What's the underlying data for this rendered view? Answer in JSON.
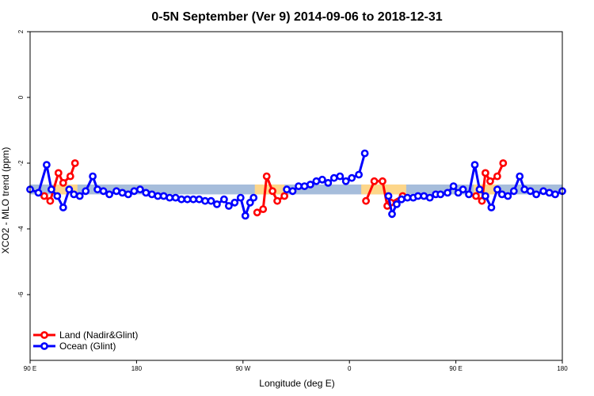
{
  "chart_data": {
    "type": "line",
    "title": "0-5N September (Ver 9)   2014-09-06 to 2018-12-31",
    "xlabel": "Longitude (deg E)",
    "ylabel": "XCO2 - MLO trend (ppm)",
    "xlim": [
      90,
      540
    ],
    "ylim": [
      -8,
      2
    ],
    "x_ticks": [
      {
        "value": 90,
        "label": "90 E"
      },
      {
        "value": 180,
        "label": "180"
      },
      {
        "value": 270,
        "label": "90 W"
      },
      {
        "value": 360,
        "label": "0"
      },
      {
        "value": 450,
        "label": "90 E"
      },
      {
        "value": 540,
        "label": "180"
      }
    ],
    "y_ticks": [
      {
        "value": 2,
        "label": "2"
      },
      {
        "value": 0,
        "label": "0"
      },
      {
        "value": -2,
        "label": "-2"
      },
      {
        "value": -4,
        "label": "-4"
      },
      {
        "value": -6,
        "label": "-6"
      }
    ],
    "grid": false,
    "legend_position": "bottom-left",
    "bands": [
      {
        "name": "ocean-band",
        "color": "#a6bddb",
        "x0": 90,
        "x1": 540,
        "y0": -2.95,
        "y1": -2.65
      },
      {
        "name": "land-band",
        "color": "#fdd68a",
        "x0": 110,
        "x1": 130,
        "y0": -2.95,
        "y1": -2.65
      },
      {
        "name": "land-band",
        "color": "#fdd68a",
        "x0": 280,
        "x1": 305,
        "y0": -2.95,
        "y1": -2.65
      },
      {
        "name": "land-band",
        "color": "#fdd68a",
        "x0": 370,
        "x1": 408,
        "y0": -2.95,
        "y1": -2.65
      },
      {
        "name": "land-band",
        "color": "#fdd68a",
        "x0": 465,
        "x1": 485,
        "y0": -2.95,
        "y1": -2.65
      }
    ],
    "series": [
      {
        "name": "Land (Nadir&Glint)",
        "color": "#ff0000",
        "segments": [
          [
            [
              102,
              -3.0
            ],
            [
              107,
              -3.15
            ],
            [
              114,
              -2.3
            ],
            [
              118,
              -2.6
            ],
            [
              124,
              -2.4
            ],
            [
              128,
              -2.0
            ]
          ],
          [
            [
              282,
              -3.5
            ],
            [
              287,
              -3.4
            ],
            [
              290,
              -2.4
            ],
            [
              295,
              -2.85
            ],
            [
              299,
              -3.15
            ],
            [
              305,
              -3.0
            ]
          ],
          [
            [
              374,
              -3.15
            ],
            [
              381,
              -2.55
            ],
            [
              388,
              -2.55
            ],
            [
              392,
              -3.3
            ],
            [
              395,
              -3.2
            ],
            [
              405,
              -3.0
            ]
          ],
          [
            [
              467,
              -3.0
            ],
            [
              472,
              -3.15
            ],
            [
              475,
              -2.3
            ],
            [
              479,
              -2.55
            ],
            [
              485,
              -2.4
            ],
            [
              490,
              -2.0
            ]
          ]
        ]
      },
      {
        "name": "Ocean (Glint)",
        "color": "#0000ff",
        "segments": [
          [
            [
              90,
              -2.8
            ],
            [
              97,
              -2.9
            ],
            [
              104,
              -2.05
            ],
            [
              108,
              -2.8
            ],
            [
              113,
              -3.0
            ],
            [
              118,
              -3.35
            ],
            [
              123,
              -2.8
            ],
            [
              127,
              -2.95
            ],
            [
              132,
              -3.0
            ],
            [
              137,
              -2.85
            ],
            [
              143,
              -2.4
            ],
            [
              147,
              -2.8
            ],
            [
              152,
              -2.85
            ],
            [
              157,
              -2.95
            ],
            [
              163,
              -2.85
            ],
            [
              168,
              -2.9
            ],
            [
              173,
              -2.95
            ],
            [
              178,
              -2.85
            ],
            [
              183,
              -2.8
            ],
            [
              188,
              -2.9
            ],
            [
              193,
              -2.95
            ],
            [
              198,
              -3.0
            ],
            [
              203,
              -3.0
            ],
            [
              208,
              -3.05
            ],
            [
              213,
              -3.05
            ],
            [
              218,
              -3.1
            ],
            [
              223,
              -3.1
            ],
            [
              228,
              -3.1
            ],
            [
              233,
              -3.1
            ],
            [
              238,
              -3.15
            ],
            [
              243,
              -3.15
            ],
            [
              248,
              -3.25
            ],
            [
              254,
              -3.1
            ],
            [
              258,
              -3.3
            ],
            [
              263,
              -3.2
            ],
            [
              268,
              -3.05
            ],
            [
              272,
              -3.6
            ],
            [
              276,
              -3.2
            ],
            [
              279,
              -3.05
            ]
          ],
          [
            [
              307,
              -2.8
            ],
            [
              312,
              -2.85
            ],
            [
              317,
              -2.7
            ],
            [
              322,
              -2.7
            ],
            [
              327,
              -2.65
            ],
            [
              332,
              -2.55
            ],
            [
              337,
              -2.5
            ],
            [
              342,
              -2.6
            ],
            [
              347,
              -2.45
            ],
            [
              352,
              -2.4
            ],
            [
              357,
              -2.55
            ],
            [
              362,
              -2.45
            ],
            [
              368,
              -2.35
            ],
            [
              373,
              -1.7
            ]
          ],
          [
            [
              393,
              -3.0
            ],
            [
              396,
              -3.55
            ],
            [
              400,
              -3.25
            ],
            [
              404,
              -3.1
            ],
            [
              409,
              -3.05
            ],
            [
              414,
              -3.05
            ],
            [
              418,
              -3.0
            ],
            [
              423,
              -3.0
            ],
            [
              428,
              -3.05
            ],
            [
              433,
              -2.95
            ],
            [
              437,
              -2.95
            ],
            [
              443,
              -2.9
            ],
            [
              448,
              -2.7
            ],
            [
              452,
              -2.9
            ],
            [
              456,
              -2.8
            ],
            [
              461,
              -2.95
            ],
            [
              466,
              -2.05
            ],
            [
              470,
              -2.8
            ],
            [
              475,
              -3.0
            ],
            [
              480,
              -3.35
            ],
            [
              485,
              -2.8
            ],
            [
              489,
              -2.95
            ],
            [
              494,
              -3.0
            ],
            [
              499,
              -2.85
            ],
            [
              504,
              -2.4
            ],
            [
              508,
              -2.8
            ],
            [
              513,
              -2.85
            ],
            [
              518,
              -2.95
            ],
            [
              524,
              -2.85
            ],
            [
              529,
              -2.9
            ],
            [
              534,
              -2.95
            ],
            [
              540,
              -2.85
            ]
          ]
        ]
      }
    ]
  }
}
